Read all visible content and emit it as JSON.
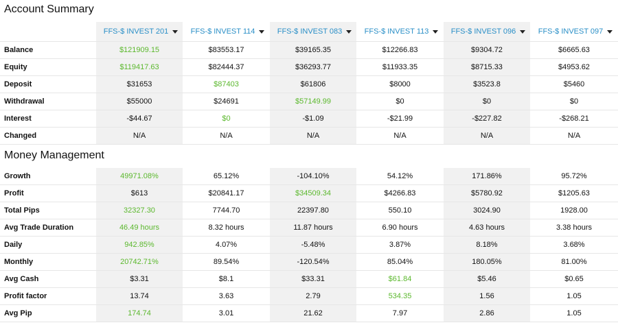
{
  "account_summary": {
    "title": "Account Summary",
    "accounts": [
      "FFS-$ INVEST 201",
      "FFS-$ INVEST 114",
      "FFS-$ INVEST 083",
      "FFS-$ INVEST 113",
      "FFS-$ INVEST 096",
      "FFS-$ INVEST 097"
    ],
    "rows": [
      {
        "label": "Balance",
        "values": [
          "$121909.15",
          "$83553.17",
          "$39165.35",
          "$12266.83",
          "$9304.72",
          "$6665.63"
        ],
        "highlight": [
          true,
          false,
          false,
          false,
          false,
          false
        ]
      },
      {
        "label": "Equity",
        "values": [
          "$119417.63",
          "$82444.37",
          "$36293.77",
          "$11933.35",
          "$8715.33",
          "$4953.62"
        ],
        "highlight": [
          true,
          false,
          false,
          false,
          false,
          false
        ]
      },
      {
        "label": "Deposit",
        "values": [
          "$31653",
          "$87403",
          "$61806",
          "$8000",
          "$3523.8",
          "$5460"
        ],
        "highlight": [
          false,
          true,
          false,
          false,
          false,
          false
        ]
      },
      {
        "label": "Withdrawal",
        "values": [
          "$55000",
          "$24691",
          "$57149.99",
          "$0",
          "$0",
          "$0"
        ],
        "highlight": [
          false,
          false,
          true,
          false,
          false,
          false
        ]
      },
      {
        "label": "Interest",
        "values": [
          "-$44.67",
          "$0",
          "-$1.09",
          "-$21.99",
          "-$227.82",
          "-$268.21"
        ],
        "highlight": [
          false,
          true,
          false,
          false,
          false,
          false
        ]
      },
      {
        "label": "Changed",
        "values": [
          "N/A",
          "N/A",
          "N/A",
          "N/A",
          "N/A",
          "N/A"
        ],
        "highlight": [
          false,
          false,
          false,
          false,
          false,
          false
        ]
      }
    ]
  },
  "money_management": {
    "title": "Money Management",
    "rows": [
      {
        "label": "Growth",
        "values": [
          "49971.08%",
          "65.12%",
          "-104.10%",
          "54.12%",
          "171.86%",
          "95.72%"
        ],
        "highlight": [
          true,
          false,
          false,
          false,
          false,
          false
        ]
      },
      {
        "label": "Profit",
        "values": [
          "$613",
          "$20841.17",
          "$34509.34",
          "$4266.83",
          "$5780.92",
          "$1205.63"
        ],
        "highlight": [
          false,
          false,
          true,
          false,
          false,
          false
        ]
      },
      {
        "label": "Total Pips",
        "values": [
          "32327.30",
          "7744.70",
          "22397.80",
          "550.10",
          "3024.90",
          "1928.00"
        ],
        "highlight": [
          true,
          false,
          false,
          false,
          false,
          false
        ]
      },
      {
        "label": "Avg Trade Duration",
        "values": [
          "46.49 hours",
          "8.32 hours",
          "11.87 hours",
          "6.90 hours",
          "4.63 hours",
          "3.38 hours"
        ],
        "highlight": [
          true,
          false,
          false,
          false,
          false,
          false
        ]
      },
      {
        "label": "Daily",
        "values": [
          "942.85%",
          "4.07%",
          "-5.48%",
          "3.87%",
          "8.18%",
          "3.68%"
        ],
        "highlight": [
          true,
          false,
          false,
          false,
          false,
          false
        ]
      },
      {
        "label": "Monthly",
        "values": [
          "20742.71%",
          "89.54%",
          "-120.54%",
          "85.04%",
          "180.05%",
          "81.00%"
        ],
        "highlight": [
          true,
          false,
          false,
          false,
          false,
          false
        ]
      },
      {
        "label": "Avg Cash",
        "values": [
          "$3.31",
          "$8.1",
          "$33.31",
          "$61.84",
          "$5.46",
          "$0.65"
        ],
        "highlight": [
          false,
          false,
          false,
          true,
          false,
          false
        ]
      },
      {
        "label": "Profit factor",
        "values": [
          "13.74",
          "3.63",
          "2.79",
          "534.35",
          "1.56",
          "1.05"
        ],
        "highlight": [
          false,
          false,
          false,
          true,
          false,
          false
        ]
      },
      {
        "label": "Avg Pip",
        "values": [
          "174.74",
          "3.01",
          "21.62",
          "7.97",
          "2.86",
          "1.05"
        ],
        "highlight": [
          true,
          false,
          false,
          false,
          false,
          false
        ]
      }
    ]
  },
  "colors": {
    "accent": "#2a8fc7",
    "positive": "#5bb82d",
    "stripe": "#f1f1f1"
  }
}
